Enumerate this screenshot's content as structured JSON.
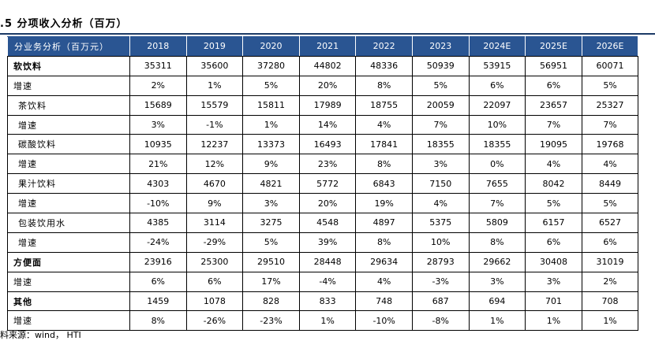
{
  "title": ".5  分项收入分析（百万）",
  "table": {
    "header": [
      "分业务分析（百万元）",
      "2018",
      "2019",
      "2020",
      "2021",
      "2022",
      "2023",
      "2024E",
      "2025E",
      "2026E"
    ],
    "rows": [
      {
        "label": "软饮料",
        "bold": true,
        "indent": false,
        "values": [
          "35311",
          "35600",
          "37280",
          "44802",
          "48336",
          "50939",
          "53915",
          "56951",
          "60071"
        ]
      },
      {
        "label": "增速",
        "bold": false,
        "indent": false,
        "values": [
          "2%",
          "1%",
          "5%",
          "20%",
          "8%",
          "5%",
          "6%",
          "6%",
          "5%"
        ]
      },
      {
        "label": "茶饮料",
        "bold": false,
        "indent": true,
        "values": [
          "15689",
          "15579",
          "15811",
          "17989",
          "18755",
          "20059",
          "22097",
          "23657",
          "25327"
        ]
      },
      {
        "label": "增速",
        "bold": false,
        "indent": true,
        "values": [
          "3%",
          "-1%",
          "1%",
          "14%",
          "4%",
          "7%",
          "10%",
          "7%",
          "7%"
        ]
      },
      {
        "label": "碳酸饮料",
        "bold": false,
        "indent": true,
        "values": [
          "10935",
          "12237",
          "13373",
          "16493",
          "17841",
          "18355",
          "18355",
          "19095",
          "19768"
        ]
      },
      {
        "label": "增速",
        "bold": false,
        "indent": true,
        "values": [
          "21%",
          "12%",
          "9%",
          "23%",
          "8%",
          "3%",
          "0%",
          "4%",
          "4%"
        ]
      },
      {
        "label": "果汁饮料",
        "bold": false,
        "indent": true,
        "values": [
          "4303",
          "4670",
          "4821",
          "5772",
          "6843",
          "7150",
          "7655",
          "8042",
          "8449"
        ]
      },
      {
        "label": "增速",
        "bold": false,
        "indent": true,
        "values": [
          "-10%",
          "9%",
          "3%",
          "20%",
          "19%",
          "4%",
          "7%",
          "5%",
          "5%"
        ]
      },
      {
        "label": "包装饮用水",
        "bold": false,
        "indent": true,
        "values": [
          "4385",
          "3114",
          "3275",
          "4548",
          "4897",
          "5375",
          "5809",
          "6157",
          "6527"
        ]
      },
      {
        "label": "增速",
        "bold": false,
        "indent": true,
        "values": [
          "-24%",
          "-29%",
          "5%",
          "39%",
          "8%",
          "10%",
          "8%",
          "6%",
          "6%"
        ]
      },
      {
        "label": "方便面",
        "bold": true,
        "indent": false,
        "values": [
          "23916",
          "25300",
          "29510",
          "28448",
          "29634",
          "28793",
          "29662",
          "30408",
          "31019"
        ]
      },
      {
        "label": "增速",
        "bold": false,
        "indent": false,
        "values": [
          "6%",
          "6%",
          "17%",
          "-4%",
          "4%",
          "-3%",
          "3%",
          "3%",
          "2%"
        ]
      },
      {
        "label": "其他",
        "bold": true,
        "indent": false,
        "values": [
          "1459",
          "1078",
          "828",
          "833",
          "748",
          "687",
          "694",
          "701",
          "708"
        ]
      },
      {
        "label": "增速",
        "bold": false,
        "indent": false,
        "values": [
          "8%",
          "-26%",
          "-23%",
          "1%",
          "-10%",
          "-8%",
          "1%",
          "1%",
          "1%"
        ]
      }
    ]
  },
  "source": "料来源：wind， HTI",
  "colors": {
    "header_bg": "#2a5592",
    "header_text": "#ffffff",
    "title_rule": "#1b3a66"
  }
}
